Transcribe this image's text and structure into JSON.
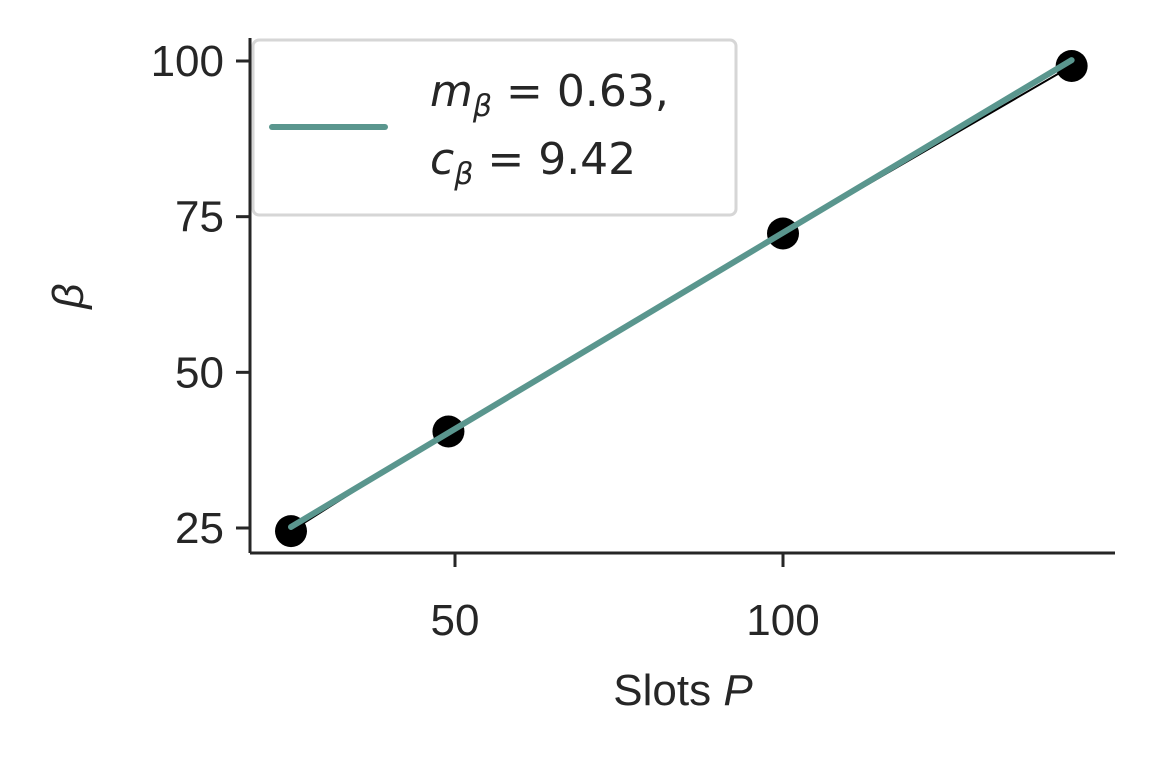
{
  "chart_data": {
    "type": "scatter",
    "xlabel": {
      "text": "Slots ",
      "var": "P"
    },
    "ylabel": "β",
    "x_ticks": [
      50,
      100
    ],
    "y_ticks": [
      25,
      50,
      75,
      100
    ],
    "xlim": [
      18,
      150
    ],
    "ylim": [
      21,
      104
    ],
    "points": [
      {
        "x": 25,
        "y": 24.5
      },
      {
        "x": 49,
        "y": 40.5
      },
      {
        "x": 100,
        "y": 72.3
      },
      {
        "x": 144,
        "y": 99.2
      }
    ],
    "fit": {
      "slope": 0.63,
      "intercept": 9.42,
      "x_range": [
        25,
        144
      ],
      "color": "#5a968e"
    },
    "legend": {
      "position": "upper-left",
      "line1": {
        "var": "m",
        "sub": "β",
        "rest": " = 0.63,"
      },
      "line2": {
        "var": "c",
        "sub": "β",
        "rest": " = 9.42"
      }
    },
    "point_color": "#000000",
    "grid": false
  }
}
